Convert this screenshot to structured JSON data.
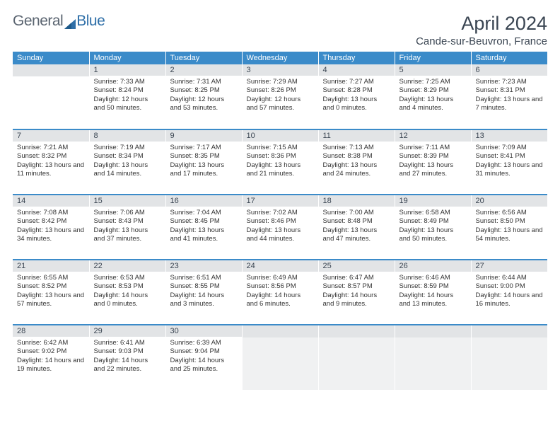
{
  "brand": {
    "part1": "General",
    "part2": "Blue"
  },
  "header": {
    "month_title": "April 2024",
    "location": "Cande-sur-Beuvron, France"
  },
  "colors": {
    "header_bg": "#3b8bc9",
    "header_text": "#ffffff",
    "daynum_bg": "#e2e4e6",
    "row_divider": "#3b8bc9",
    "text": "#333333",
    "title_text": "#3a4552",
    "logo_icon": "#2f6fa8"
  },
  "weekdays": [
    "Sunday",
    "Monday",
    "Tuesday",
    "Wednesday",
    "Thursday",
    "Friday",
    "Saturday"
  ],
  "grid": [
    [
      {
        "day": "",
        "sunrise": "",
        "sunset": "",
        "daylight": ""
      },
      {
        "day": "1",
        "sunrise": "Sunrise: 7:33 AM",
        "sunset": "Sunset: 8:24 PM",
        "daylight": "Daylight: 12 hours and 50 minutes."
      },
      {
        "day": "2",
        "sunrise": "Sunrise: 7:31 AM",
        "sunset": "Sunset: 8:25 PM",
        "daylight": "Daylight: 12 hours and 53 minutes."
      },
      {
        "day": "3",
        "sunrise": "Sunrise: 7:29 AM",
        "sunset": "Sunset: 8:26 PM",
        "daylight": "Daylight: 12 hours and 57 minutes."
      },
      {
        "day": "4",
        "sunrise": "Sunrise: 7:27 AM",
        "sunset": "Sunset: 8:28 PM",
        "daylight": "Daylight: 13 hours and 0 minutes."
      },
      {
        "day": "5",
        "sunrise": "Sunrise: 7:25 AM",
        "sunset": "Sunset: 8:29 PM",
        "daylight": "Daylight: 13 hours and 4 minutes."
      },
      {
        "day": "6",
        "sunrise": "Sunrise: 7:23 AM",
        "sunset": "Sunset: 8:31 PM",
        "daylight": "Daylight: 13 hours and 7 minutes."
      }
    ],
    [
      {
        "day": "7",
        "sunrise": "Sunrise: 7:21 AM",
        "sunset": "Sunset: 8:32 PM",
        "daylight": "Daylight: 13 hours and 11 minutes."
      },
      {
        "day": "8",
        "sunrise": "Sunrise: 7:19 AM",
        "sunset": "Sunset: 8:34 PM",
        "daylight": "Daylight: 13 hours and 14 minutes."
      },
      {
        "day": "9",
        "sunrise": "Sunrise: 7:17 AM",
        "sunset": "Sunset: 8:35 PM",
        "daylight": "Daylight: 13 hours and 17 minutes."
      },
      {
        "day": "10",
        "sunrise": "Sunrise: 7:15 AM",
        "sunset": "Sunset: 8:36 PM",
        "daylight": "Daylight: 13 hours and 21 minutes."
      },
      {
        "day": "11",
        "sunrise": "Sunrise: 7:13 AM",
        "sunset": "Sunset: 8:38 PM",
        "daylight": "Daylight: 13 hours and 24 minutes."
      },
      {
        "day": "12",
        "sunrise": "Sunrise: 7:11 AM",
        "sunset": "Sunset: 8:39 PM",
        "daylight": "Daylight: 13 hours and 27 minutes."
      },
      {
        "day": "13",
        "sunrise": "Sunrise: 7:09 AM",
        "sunset": "Sunset: 8:41 PM",
        "daylight": "Daylight: 13 hours and 31 minutes."
      }
    ],
    [
      {
        "day": "14",
        "sunrise": "Sunrise: 7:08 AM",
        "sunset": "Sunset: 8:42 PM",
        "daylight": "Daylight: 13 hours and 34 minutes."
      },
      {
        "day": "15",
        "sunrise": "Sunrise: 7:06 AM",
        "sunset": "Sunset: 8:43 PM",
        "daylight": "Daylight: 13 hours and 37 minutes."
      },
      {
        "day": "16",
        "sunrise": "Sunrise: 7:04 AM",
        "sunset": "Sunset: 8:45 PM",
        "daylight": "Daylight: 13 hours and 41 minutes."
      },
      {
        "day": "17",
        "sunrise": "Sunrise: 7:02 AM",
        "sunset": "Sunset: 8:46 PM",
        "daylight": "Daylight: 13 hours and 44 minutes."
      },
      {
        "day": "18",
        "sunrise": "Sunrise: 7:00 AM",
        "sunset": "Sunset: 8:48 PM",
        "daylight": "Daylight: 13 hours and 47 minutes."
      },
      {
        "day": "19",
        "sunrise": "Sunrise: 6:58 AM",
        "sunset": "Sunset: 8:49 PM",
        "daylight": "Daylight: 13 hours and 50 minutes."
      },
      {
        "day": "20",
        "sunrise": "Sunrise: 6:56 AM",
        "sunset": "Sunset: 8:50 PM",
        "daylight": "Daylight: 13 hours and 54 minutes."
      }
    ],
    [
      {
        "day": "21",
        "sunrise": "Sunrise: 6:55 AM",
        "sunset": "Sunset: 8:52 PM",
        "daylight": "Daylight: 13 hours and 57 minutes."
      },
      {
        "day": "22",
        "sunrise": "Sunrise: 6:53 AM",
        "sunset": "Sunset: 8:53 PM",
        "daylight": "Daylight: 14 hours and 0 minutes."
      },
      {
        "day": "23",
        "sunrise": "Sunrise: 6:51 AM",
        "sunset": "Sunset: 8:55 PM",
        "daylight": "Daylight: 14 hours and 3 minutes."
      },
      {
        "day": "24",
        "sunrise": "Sunrise: 6:49 AM",
        "sunset": "Sunset: 8:56 PM",
        "daylight": "Daylight: 14 hours and 6 minutes."
      },
      {
        "day": "25",
        "sunrise": "Sunrise: 6:47 AM",
        "sunset": "Sunset: 8:57 PM",
        "daylight": "Daylight: 14 hours and 9 minutes."
      },
      {
        "day": "26",
        "sunrise": "Sunrise: 6:46 AM",
        "sunset": "Sunset: 8:59 PM",
        "daylight": "Daylight: 14 hours and 13 minutes."
      },
      {
        "day": "27",
        "sunrise": "Sunrise: 6:44 AM",
        "sunset": "Sunset: 9:00 PM",
        "daylight": "Daylight: 14 hours and 16 minutes."
      }
    ],
    [
      {
        "day": "28",
        "sunrise": "Sunrise: 6:42 AM",
        "sunset": "Sunset: 9:02 PM",
        "daylight": "Daylight: 14 hours and 19 minutes."
      },
      {
        "day": "29",
        "sunrise": "Sunrise: 6:41 AM",
        "sunset": "Sunset: 9:03 PM",
        "daylight": "Daylight: 14 hours and 22 minutes."
      },
      {
        "day": "30",
        "sunrise": "Sunrise: 6:39 AM",
        "sunset": "Sunset: 9:04 PM",
        "daylight": "Daylight: 14 hours and 25 minutes."
      },
      {
        "day": "",
        "sunrise": "",
        "sunset": "",
        "daylight": "",
        "trailing": true
      },
      {
        "day": "",
        "sunrise": "",
        "sunset": "",
        "daylight": "",
        "trailing": true
      },
      {
        "day": "",
        "sunrise": "",
        "sunset": "",
        "daylight": "",
        "trailing": true
      },
      {
        "day": "",
        "sunrise": "",
        "sunset": "",
        "daylight": "",
        "trailing": true
      }
    ]
  ]
}
